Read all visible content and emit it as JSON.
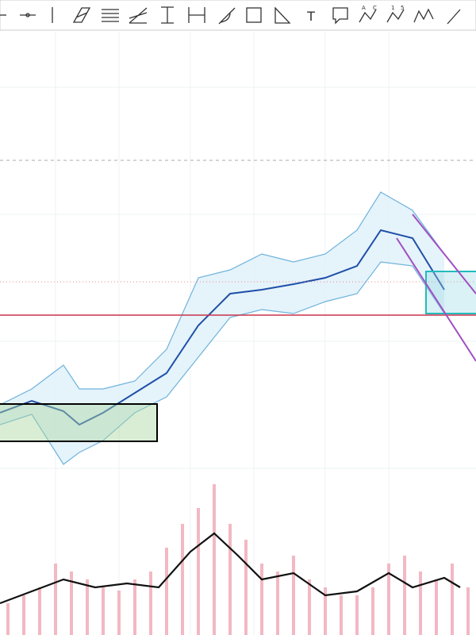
{
  "toolbar": {
    "text_tool": "T",
    "abcd_tool": [
      "A",
      "C"
    ],
    "elliott_tool": [
      "1",
      "5"
    ]
  },
  "chart_data": {
    "type": "line",
    "price": {
      "x": [
        0,
        8,
        16,
        20,
        26,
        34,
        42,
        50,
        58,
        66,
        74,
        82,
        90,
        96,
        104,
        112
      ],
      "xlim": [
        0,
        120
      ],
      "ylim": [
        0,
        100
      ],
      "series": [
        {
          "name": "middle",
          "color": "#1f4fa8",
          "values": [
            20,
            23.75,
            20.5,
            16.25,
            20,
            26.25,
            32.5,
            47.5,
            57.5,
            58.75,
            60.5,
            62.5,
            66.25,
            77.5,
            75,
            58.75
          ]
        },
        {
          "name": "upper",
          "color": "#6fb3dc",
          "values": [
            22.5,
            27.5,
            35,
            27.5,
            27.5,
            30,
            40,
            62.5,
            65,
            70,
            67.5,
            70,
            77.5,
            89.5,
            83.75,
            70
          ]
        },
        {
          "name": "lower",
          "color": "#6fb3dc",
          "values": [
            16.25,
            19.5,
            3.75,
            7.5,
            11.25,
            20,
            25,
            37.5,
            50,
            52.5,
            51.25,
            55,
            57.5,
            67.5,
            66.25,
            51.25
          ]
        }
      ],
      "band_fill": "#dff0fa"
    },
    "volume": {
      "x": [
        2,
        6,
        10,
        14,
        18,
        22,
        26,
        30,
        34,
        38,
        42,
        46,
        50,
        54,
        58,
        62,
        66,
        70,
        74,
        78,
        82,
        86,
        90,
        94,
        98,
        102,
        106,
        110,
        114,
        118
      ],
      "xlim": [
        0,
        120
      ],
      "ylim": [
        0,
        100
      ],
      "values": [
        20,
        25,
        30,
        45,
        40,
        35,
        30,
        28,
        35,
        40,
        55,
        70,
        80,
        95,
        70,
        60,
        45,
        40,
        50,
        35,
        30,
        25,
        25,
        30,
        45,
        50,
        40,
        35,
        45,
        30
      ],
      "color": "#f2b8c3",
      "ma": {
        "x": [
          0,
          8,
          16,
          24,
          32,
          40,
          48,
          54,
          60,
          66,
          74,
          82,
          90,
          98,
          104,
          112,
          116
        ],
        "values": [
          20,
          27.5,
          35,
          30,
          32.5,
          30,
          52.5,
          64,
          50,
          35,
          39,
          25,
          27.5,
          39,
          30,
          36,
          30
        ],
        "color": "#111111"
      }
    }
  }
}
